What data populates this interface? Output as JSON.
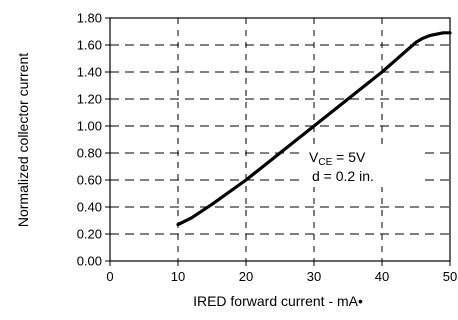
{
  "chart_data": {
    "type": "line",
    "xlabel": "IRED forward current - mA•",
    "ylabel": "Normalized collector current",
    "xlim": [
      0,
      50
    ],
    "ylim": [
      0,
      1.8
    ],
    "x_ticks": [
      "0",
      "10",
      "20",
      "30",
      "40",
      "50"
    ],
    "y_ticks": [
      "0.00",
      "0.20",
      "0.40",
      "0.60",
      "0.80",
      "1.00",
      "1.20",
      "1.40",
      "1.60",
      "1.80"
    ],
    "grid": true,
    "grid_style": "dashed",
    "series": [
      {
        "x": [
          10,
          12,
          15,
          20,
          25,
          30,
          35,
          40,
          45,
          46,
          47,
          48,
          49,
          50
        ],
        "y": [
          0.27,
          0.32,
          0.42,
          0.6,
          0.8,
          1.0,
          1.2,
          1.4,
          1.62,
          1.65,
          1.67,
          1.68,
          1.69,
          1.69
        ]
      }
    ],
    "annotation": {
      "vce_main": "V",
      "vce_sub": "CE",
      "vce_value": " = 5V",
      "distance": "d = 0.2 in."
    }
  }
}
